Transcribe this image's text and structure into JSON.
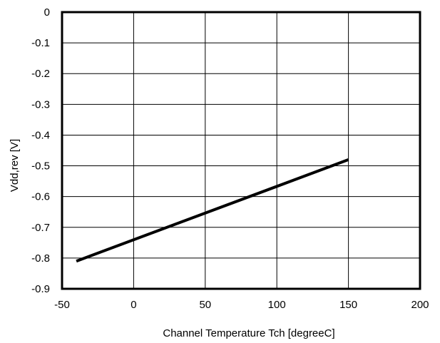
{
  "chart_data": {
    "type": "line",
    "title": "",
    "xlabel": "Channel Temperature Tch [degreeC]",
    "ylabel": "Vdd,rev [V]",
    "xlim": [
      -50,
      200
    ],
    "ylim": [
      -0.9,
      0
    ],
    "x_ticks": [
      -50,
      0,
      50,
      100,
      150,
      200
    ],
    "y_ticks": [
      0,
      -0.1,
      -0.2,
      -0.3,
      -0.4,
      -0.5,
      -0.6,
      -0.7,
      -0.8,
      -0.9
    ],
    "x_tick_labels": [
      "-50",
      "0",
      "50",
      "100",
      "150",
      "200"
    ],
    "y_tick_labels": [
      "0",
      "-0.1",
      "-0.2",
      "-0.3",
      "-0.4",
      "-0.5",
      "-0.6",
      "-0.7",
      "-0.8",
      "-0.9"
    ],
    "grid": true,
    "legend": "none",
    "series": [
      {
        "color": "#000000",
        "x": [
          -40,
          150
        ],
        "y": [
          -0.81,
          -0.48
        ]
      }
    ]
  }
}
